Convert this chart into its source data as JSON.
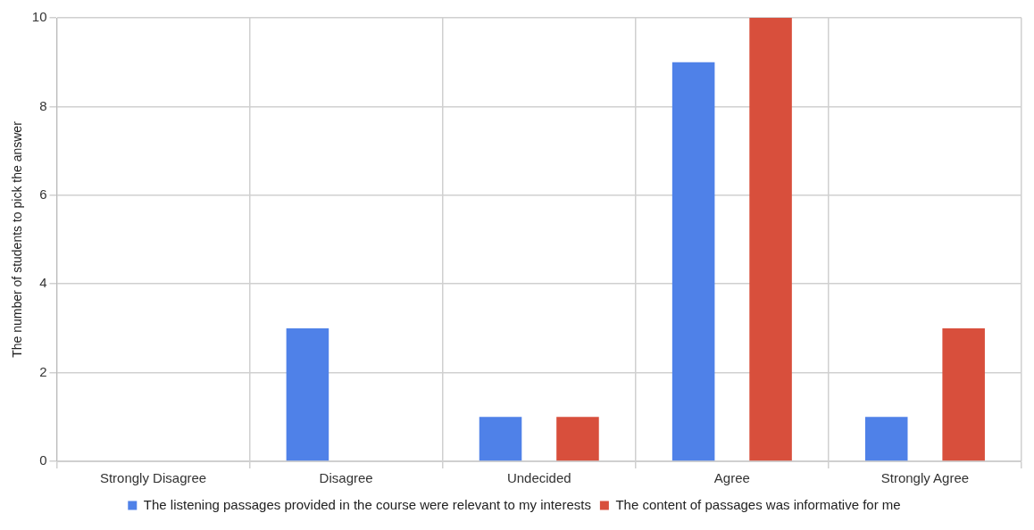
{
  "chart_data": {
    "type": "bar",
    "ylabel": "The number of students to pick the answer",
    "categories": [
      "Strongly Disagree",
      "Disagree",
      "Undecided",
      "Agree",
      "Strongly Agree"
    ],
    "series": [
      {
        "name": "The listening passages provided in the course were relevant to my interests",
        "color": "#4f81e8",
        "values": [
          0,
          3,
          1,
          9,
          1
        ]
      },
      {
        "name": "The content of passages was informative for me",
        "color": "#d84f3c",
        "values": [
          0,
          0,
          1,
          10,
          3
        ]
      }
    ],
    "ylim": [
      0,
      10
    ],
    "yticks": [
      0,
      2,
      4,
      6,
      8,
      10
    ],
    "grid": true,
    "legend": "bottom"
  }
}
